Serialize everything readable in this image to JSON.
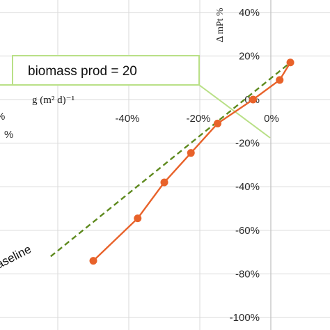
{
  "chart_data": {
    "type": "line",
    "x_ticks": [
      "-40%",
      "-20%",
      "0%"
    ],
    "x_tick_values": [
      -0.4,
      -0.2,
      0.0
    ],
    "y_ticks": [
      "40%",
      "20%",
      "0%",
      "-20%",
      "-40%",
      "-60%",
      "-80%",
      "-100%"
    ],
    "y_tick_values": [
      0.4,
      0.2,
      0.0,
      -0.2,
      -0.4,
      -0.6,
      -0.8,
      -1.0
    ],
    "xlim": [
      -0.62,
      0.03
    ],
    "ylim": [
      -1.0,
      0.4
    ],
    "grid": true,
    "ylabel": "Δ mPt %",
    "xlabel": "g (m² d)⁻¹",
    "left_edge_fragments": [
      "%",
      "%"
    ],
    "callout": "biomass prod = 20",
    "series": [
      {
        "name": "",
        "style": "solid-markers",
        "color": "#E8622A",
        "x": [
          -0.5,
          -0.375,
          -0.3,
          -0.225,
          -0.15,
          -0.05,
          0.025,
          0.055
        ],
        "y": [
          -0.74,
          -0.545,
          -0.38,
          -0.245,
          -0.11,
          0.0,
          0.09,
          0.17
        ]
      },
      {
        "name": "aseline",
        "style": "dashed",
        "color": "#5E8A1E",
        "x": [
          -0.62,
          0.055
        ],
        "y": [
          -0.72,
          0.17
        ]
      }
    ]
  }
}
